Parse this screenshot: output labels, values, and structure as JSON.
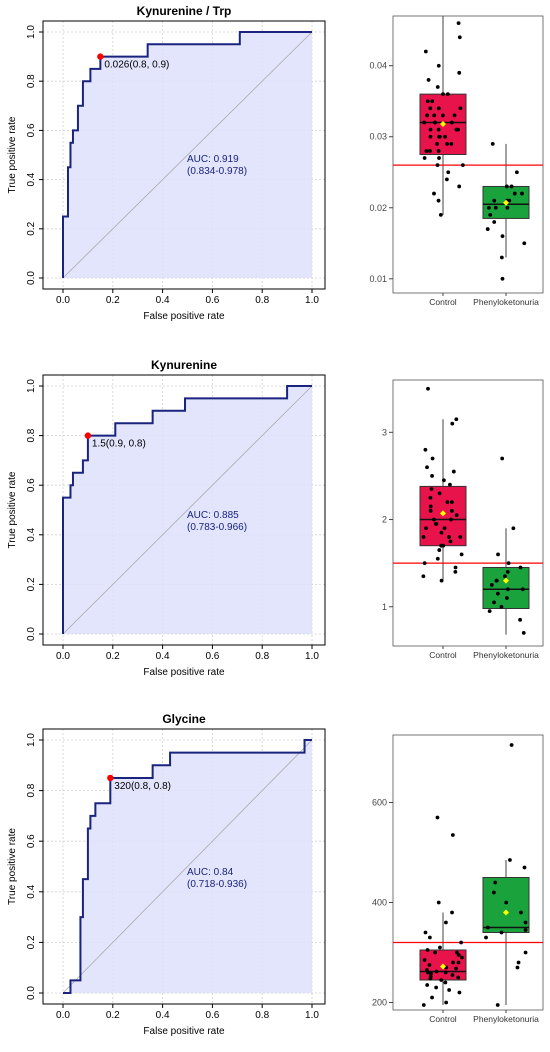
{
  "chart_data": [
    {
      "type": "line",
      "title": "Kynurenine / Trp",
      "xlabel": "False positive rate",
      "ylabel": "True positive rate",
      "xlim": [
        0,
        1
      ],
      "ylim": [
        0,
        1
      ],
      "xticks": [
        "0.0",
        "0.2",
        "0.4",
        "0.6",
        "0.8",
        "1.0"
      ],
      "yticks": [
        "0.0",
        "0.2",
        "0.4",
        "0.6",
        "0.8",
        "1.0"
      ],
      "grid": true,
      "colors": {
        "curve": "#1a237e",
        "fill": "#dde0fb",
        "cutoff": "#ff0000",
        "text": "#1a237e",
        "diagonal": "#aaaaaa"
      },
      "series": [
        {
          "x": [
            0,
            0,
            0.02,
            0.02,
            0.03,
            0.03,
            0.04,
            0.04,
            0.06,
            0.06,
            0.08,
            0.08,
            0.11,
            0.11,
            0.15,
            0.15,
            0.34,
            0.34,
            0.37,
            0.37,
            0.71,
            0.71,
            0.95,
            1.0
          ],
          "y": [
            0,
            0.25,
            0.25,
            0.45,
            0.45,
            0.55,
            0.55,
            0.6,
            0.6,
            0.7,
            0.7,
            0.8,
            0.8,
            0.85,
            0.85,
            0.9,
            0.9,
            0.95,
            0.95,
            0.95,
            0.95,
            1.0,
            1.0,
            1.0
          ]
        }
      ],
      "cutoff": {
        "x": 0.15,
        "y": 0.9,
        "label": "0.026(0.8, 0.9)"
      },
      "annotations": [
        "AUC: 0.919",
        "(0.834-0.978)"
      ]
    },
    {
      "type": "line",
      "title": "Kynurenine",
      "xlabel": "False positive rate",
      "ylabel": "True positive rate",
      "xlim": [
        0,
        1
      ],
      "ylim": [
        0,
        1
      ],
      "xticks": [
        "0.0",
        "0.2",
        "0.4",
        "0.6",
        "0.8",
        "1.0"
      ],
      "yticks": [
        "0.0",
        "0.2",
        "0.4",
        "0.6",
        "0.8",
        "1.0"
      ],
      "grid": true,
      "colors": {
        "curve": "#1a237e",
        "fill": "#dde0fb",
        "cutoff": "#ff0000",
        "text": "#1a237e",
        "diagonal": "#aaaaaa"
      },
      "series": [
        {
          "x": [
            0,
            0,
            0.03,
            0.03,
            0.04,
            0.04,
            0.08,
            0.08,
            0.1,
            0.1,
            0.21,
            0.21,
            0.36,
            0.36,
            0.49,
            0.49,
            0.9,
            0.9,
            1.0
          ],
          "y": [
            0,
            0.55,
            0.55,
            0.6,
            0.6,
            0.65,
            0.65,
            0.7,
            0.7,
            0.8,
            0.8,
            0.85,
            0.85,
            0.9,
            0.9,
            0.95,
            0.95,
            1.0,
            1.0
          ]
        }
      ],
      "cutoff": {
        "x": 0.1,
        "y": 0.8,
        "label": "1.5(0.9, 0.8)"
      },
      "annotations": [
        "AUC: 0.885",
        "(0.783-0.966)"
      ]
    },
    {
      "type": "line",
      "title": "Glycine",
      "xlabel": "False positive rate",
      "ylabel": "True positive rate",
      "xlim": [
        0,
        1
      ],
      "ylim": [
        0,
        1
      ],
      "xticks": [
        "0.0",
        "0.2",
        "0.4",
        "0.6",
        "0.8",
        "1.0"
      ],
      "yticks": [
        "0.0",
        "0.2",
        "0.4",
        "0.6",
        "0.8",
        "1.0"
      ],
      "grid": true,
      "colors": {
        "curve": "#1a237e",
        "fill": "#dde0fb",
        "cutoff": "#ff0000",
        "text": "#1a237e",
        "diagonal": "#aaaaaa"
      },
      "series": [
        {
          "x": [
            0,
            0.03,
            0.03,
            0.07,
            0.07,
            0.08,
            0.08,
            0.1,
            0.1,
            0.11,
            0.11,
            0.13,
            0.13,
            0.19,
            0.19,
            0.36,
            0.36,
            0.43,
            0.43,
            0.97,
            0.97,
            1.0
          ],
          "y": [
            0,
            0,
            0.05,
            0.05,
            0.3,
            0.3,
            0.45,
            0.45,
            0.65,
            0.65,
            0.7,
            0.7,
            0.75,
            0.75,
            0.85,
            0.85,
            0.9,
            0.9,
            0.95,
            0.95,
            1.0,
            1.0
          ]
        }
      ],
      "cutoff": {
        "x": 0.19,
        "y": 0.85,
        "label": "320(0.8, 0.8)"
      },
      "annotations": [
        "AUC: 0.84",
        "(0.718-0.936)"
      ]
    },
    {
      "type": "box",
      "categories": [
        "Control",
        "Phenyloketonuria"
      ],
      "ylim": [
        0.008,
        0.047
      ],
      "yticks": [
        0.01,
        0.02,
        0.03,
        0.04
      ],
      "yticklabels": [
        "0.01",
        "0.02",
        "0.03",
        "0.04"
      ],
      "threshold": 0.026,
      "colors": {
        "Control": "#e8134a",
        "Phenyloketonuria": "#1aa33c",
        "threshold": "#ff0000",
        "mean": "#ffff00",
        "points": "#000000"
      },
      "boxes": [
        {
          "name": "Control",
          "whisker_low": 0.019,
          "q1": 0.0275,
          "median": 0.032,
          "q3": 0.036,
          "whisker_high": 0.047,
          "mean": 0.0318,
          "points": [
            0.046,
            0.044,
            0.042,
            0.04,
            0.039,
            0.038,
            0.037,
            0.036,
            0.036,
            0.035,
            0.035,
            0.034,
            0.034,
            0.034,
            0.033,
            0.033,
            0.033,
            0.032,
            0.032,
            0.032,
            0.032,
            0.031,
            0.031,
            0.031,
            0.03,
            0.03,
            0.03,
            0.029,
            0.029,
            0.029,
            0.028,
            0.028,
            0.027,
            0.027,
            0.026,
            0.026,
            0.025,
            0.024,
            0.023,
            0.022,
            0.021,
            0.019,
            0.031,
            0.033,
            0.03,
            0.028
          ]
        },
        {
          "name": "Phenyloketonuria",
          "whisker_low": 0.013,
          "q1": 0.0185,
          "median": 0.0205,
          "q3": 0.023,
          "whisker_high": 0.029,
          "mean": 0.0207,
          "points": [
            0.029,
            0.025,
            0.023,
            0.022,
            0.021,
            0.021,
            0.02,
            0.02,
            0.02,
            0.019,
            0.018,
            0.017,
            0.016,
            0.015,
            0.013,
            0.01,
            0.021,
            0.022,
            0.023
          ]
        }
      ]
    },
    {
      "type": "box",
      "categories": [
        "Control",
        "Phenyloketonuria"
      ],
      "ylim": [
        0.55,
        3.6
      ],
      "yticks": [
        1,
        2,
        3
      ],
      "yticklabels": [
        "1",
        "2",
        "3"
      ],
      "threshold": 1.5,
      "colors": {
        "Control": "#e8134a",
        "Phenyloketonuria": "#1aa33c",
        "threshold": "#ff0000",
        "mean": "#ffff00",
        "points": "#000000"
      },
      "boxes": [
        {
          "name": "Control",
          "whisker_low": 1.3,
          "q1": 1.7,
          "median": 2.0,
          "q3": 2.38,
          "whisker_high": 3.15,
          "mean": 2.07,
          "points": [
            3.5,
            3.15,
            3.1,
            2.8,
            2.7,
            2.6,
            2.55,
            2.5,
            2.45,
            2.4,
            2.35,
            2.3,
            2.25,
            2.2,
            2.15,
            2.1,
            2.05,
            2.0,
            2.0,
            1.95,
            1.9,
            1.9,
            1.85,
            1.8,
            1.8,
            1.75,
            1.7,
            1.7,
            1.65,
            1.6,
            1.55,
            1.5,
            1.45,
            1.4,
            1.35,
            1.3,
            2.1,
            2.2,
            1.95,
            1.8
          ]
        },
        {
          "name": "Phenyloketonuria",
          "whisker_low": 0.68,
          "q1": 0.98,
          "median": 1.2,
          "q3": 1.45,
          "whisker_high": 1.9,
          "mean": 1.3,
          "points": [
            2.7,
            1.9,
            1.6,
            1.5,
            1.45,
            1.4,
            1.35,
            1.3,
            1.25,
            1.2,
            1.15,
            1.1,
            1.05,
            1.0,
            0.95,
            0.85,
            0.7,
            1.3,
            1.2
          ]
        }
      ]
    },
    {
      "type": "box",
      "categories": [
        "Control",
        "Phenyloketonuria"
      ],
      "ylim": [
        185,
        735
      ],
      "yticks": [
        200,
        400,
        600
      ],
      "yticklabels": [
        "200",
        "400",
        "600"
      ],
      "threshold": 320,
      "colors": {
        "Control": "#e8134a",
        "Phenyloketonuria": "#1aa33c",
        "threshold": "#ff0000",
        "mean": "#ffff00",
        "points": "#000000"
      },
      "boxes": [
        {
          "name": "Control",
          "whisker_low": 195,
          "q1": 245,
          "median": 262,
          "q3": 305,
          "whisker_high": 380,
          "mean": 272,
          "points": [
            570,
            535,
            400,
            380,
            360,
            340,
            330,
            320,
            310,
            305,
            300,
            295,
            290,
            285,
            280,
            275,
            270,
            268,
            265,
            262,
            260,
            258,
            255,
            252,
            250,
            248,
            245,
            240,
            235,
            230,
            225,
            220,
            210,
            200,
            195,
            260,
            280,
            300
          ]
        },
        {
          "name": "Phenyloketonuria",
          "whisker_low": 195,
          "q1": 340,
          "median": 350,
          "q3": 450,
          "whisker_high": 485,
          "mean": 380,
          "points": [
            715,
            485,
            470,
            440,
            420,
            400,
            380,
            360,
            350,
            345,
            340,
            330,
            300,
            280,
            270,
            195
          ]
        }
      ]
    }
  ]
}
